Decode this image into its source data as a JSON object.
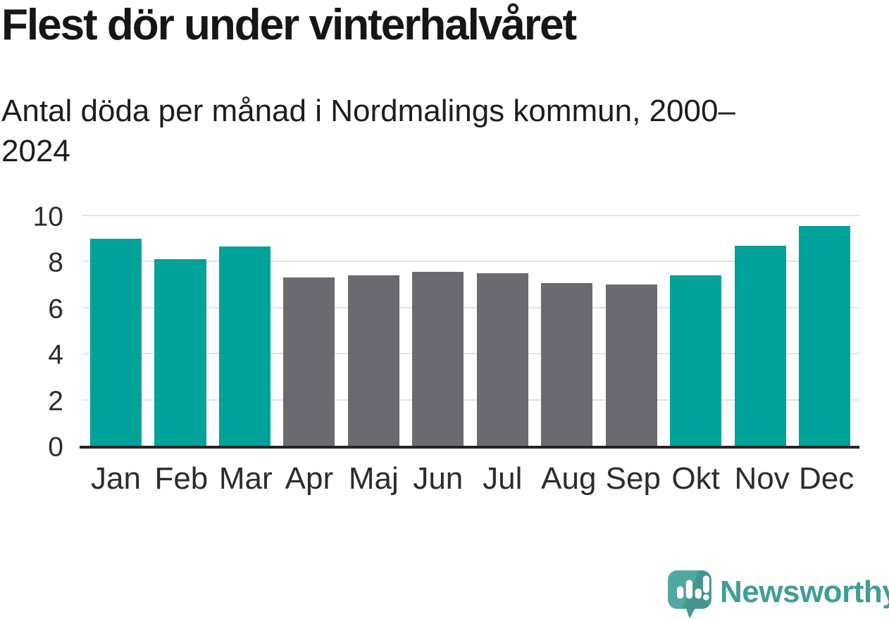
{
  "header": {
    "title": "Flest dör under vinterhalvåret",
    "subtitle": "Antal döda per månad i Nordmalings kommun, 2000–2024"
  },
  "chart_data": {
    "type": "bar",
    "title": "Flest dör under vinterhalvåret",
    "subtitle": "Antal döda per månad i Nordmalings kommun, 2000–2024",
    "categories": [
      "Jan",
      "Feb",
      "Mar",
      "Apr",
      "Maj",
      "Jun",
      "Jul",
      "Aug",
      "Sep",
      "Okt",
      "Nov",
      "Dec"
    ],
    "values": [
      9.0,
      8.1,
      8.65,
      7.3,
      7.4,
      7.55,
      7.5,
      7.05,
      7.0,
      7.4,
      8.7,
      9.55
    ],
    "bar_colors": [
      "#00A29A",
      "#00A29A",
      "#00A29A",
      "#6B6A70",
      "#6B6A70",
      "#6B6A70",
      "#6B6A70",
      "#6B6A70",
      "#6B6A70",
      "#00A29A",
      "#00A29A",
      "#00A29A"
    ],
    "xlabel": "",
    "ylabel": "",
    "ylim": [
      0,
      10
    ],
    "yticks": [
      0,
      2,
      4,
      6,
      8,
      10
    ],
    "grid": true,
    "legend": "none",
    "colors": {
      "winter_highlight": "#00A29A",
      "summer_base": "#6B6A70",
      "gridline": "#e3e3e3",
      "axis_line": "#232527"
    }
  },
  "footer": {
    "brand": "Newsworthy",
    "brand_text_color": "#3f9d97",
    "logo_bubble_color": "#4FA7A1"
  }
}
